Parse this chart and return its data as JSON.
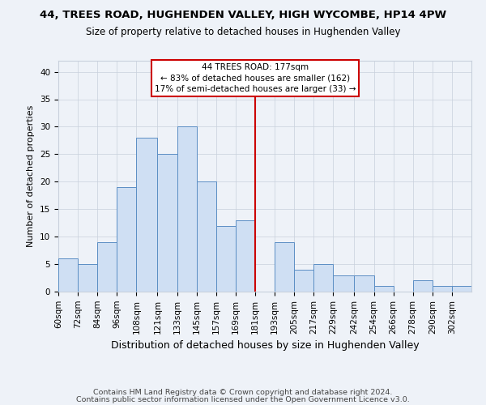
{
  "title": "44, TREES ROAD, HUGHENDEN VALLEY, HIGH WYCOMBE, HP14 4PW",
  "subtitle": "Size of property relative to detached houses in Hughenden Valley",
  "xlabel": "Distribution of detached houses by size in Hughenden Valley",
  "ylabel": "Number of detached properties",
  "footer1": "Contains HM Land Registry data © Crown copyright and database right 2024.",
  "footer2": "Contains public sector information licensed under the Open Government Licence v3.0.",
  "bin_labels": [
    "60sqm",
    "72sqm",
    "84sqm",
    "96sqm",
    "108sqm",
    "121sqm",
    "133sqm",
    "145sqm",
    "157sqm",
    "169sqm",
    "181sqm",
    "193sqm",
    "205sqm",
    "217sqm",
    "229sqm",
    "242sqm",
    "254sqm",
    "266sqm",
    "278sqm",
    "290sqm",
    "302sqm"
  ],
  "bar_values": [
    6,
    5,
    9,
    19,
    28,
    25,
    30,
    20,
    12,
    13,
    0,
    9,
    4,
    5,
    3,
    3,
    1,
    0,
    2,
    1,
    1
  ],
  "bar_color": "#cfdff3",
  "bar_edgecolor": "#5b8ec4",
  "bin_edges_values": [
    60,
    72,
    84,
    96,
    108,
    121,
    133,
    145,
    157,
    169,
    181,
    193,
    205,
    217,
    229,
    242,
    254,
    266,
    278,
    290,
    302,
    314
  ],
  "vline_x": 181,
  "vline_color": "#cc0000",
  "annotation_line1": "44 TREES ROAD: 177sqm",
  "annotation_line2": "← 83% of detached houses are smaller (162)",
  "annotation_line3": "17% of semi-detached houses are larger (33) →",
  "annotation_box_facecolor": "#ffffff",
  "annotation_box_edgecolor": "#cc0000",
  "ylim": [
    0,
    42
  ],
  "yticks": [
    0,
    5,
    10,
    15,
    20,
    25,
    30,
    35,
    40
  ],
  "grid_color": "#c8d0dc",
  "background_color": "#eef2f8",
  "title_fontsize": 9.5,
  "subtitle_fontsize": 8.5,
  "ylabel_fontsize": 8,
  "xlabel_fontsize": 9,
  "tick_fontsize": 7.5,
  "footer_fontsize": 6.8
}
